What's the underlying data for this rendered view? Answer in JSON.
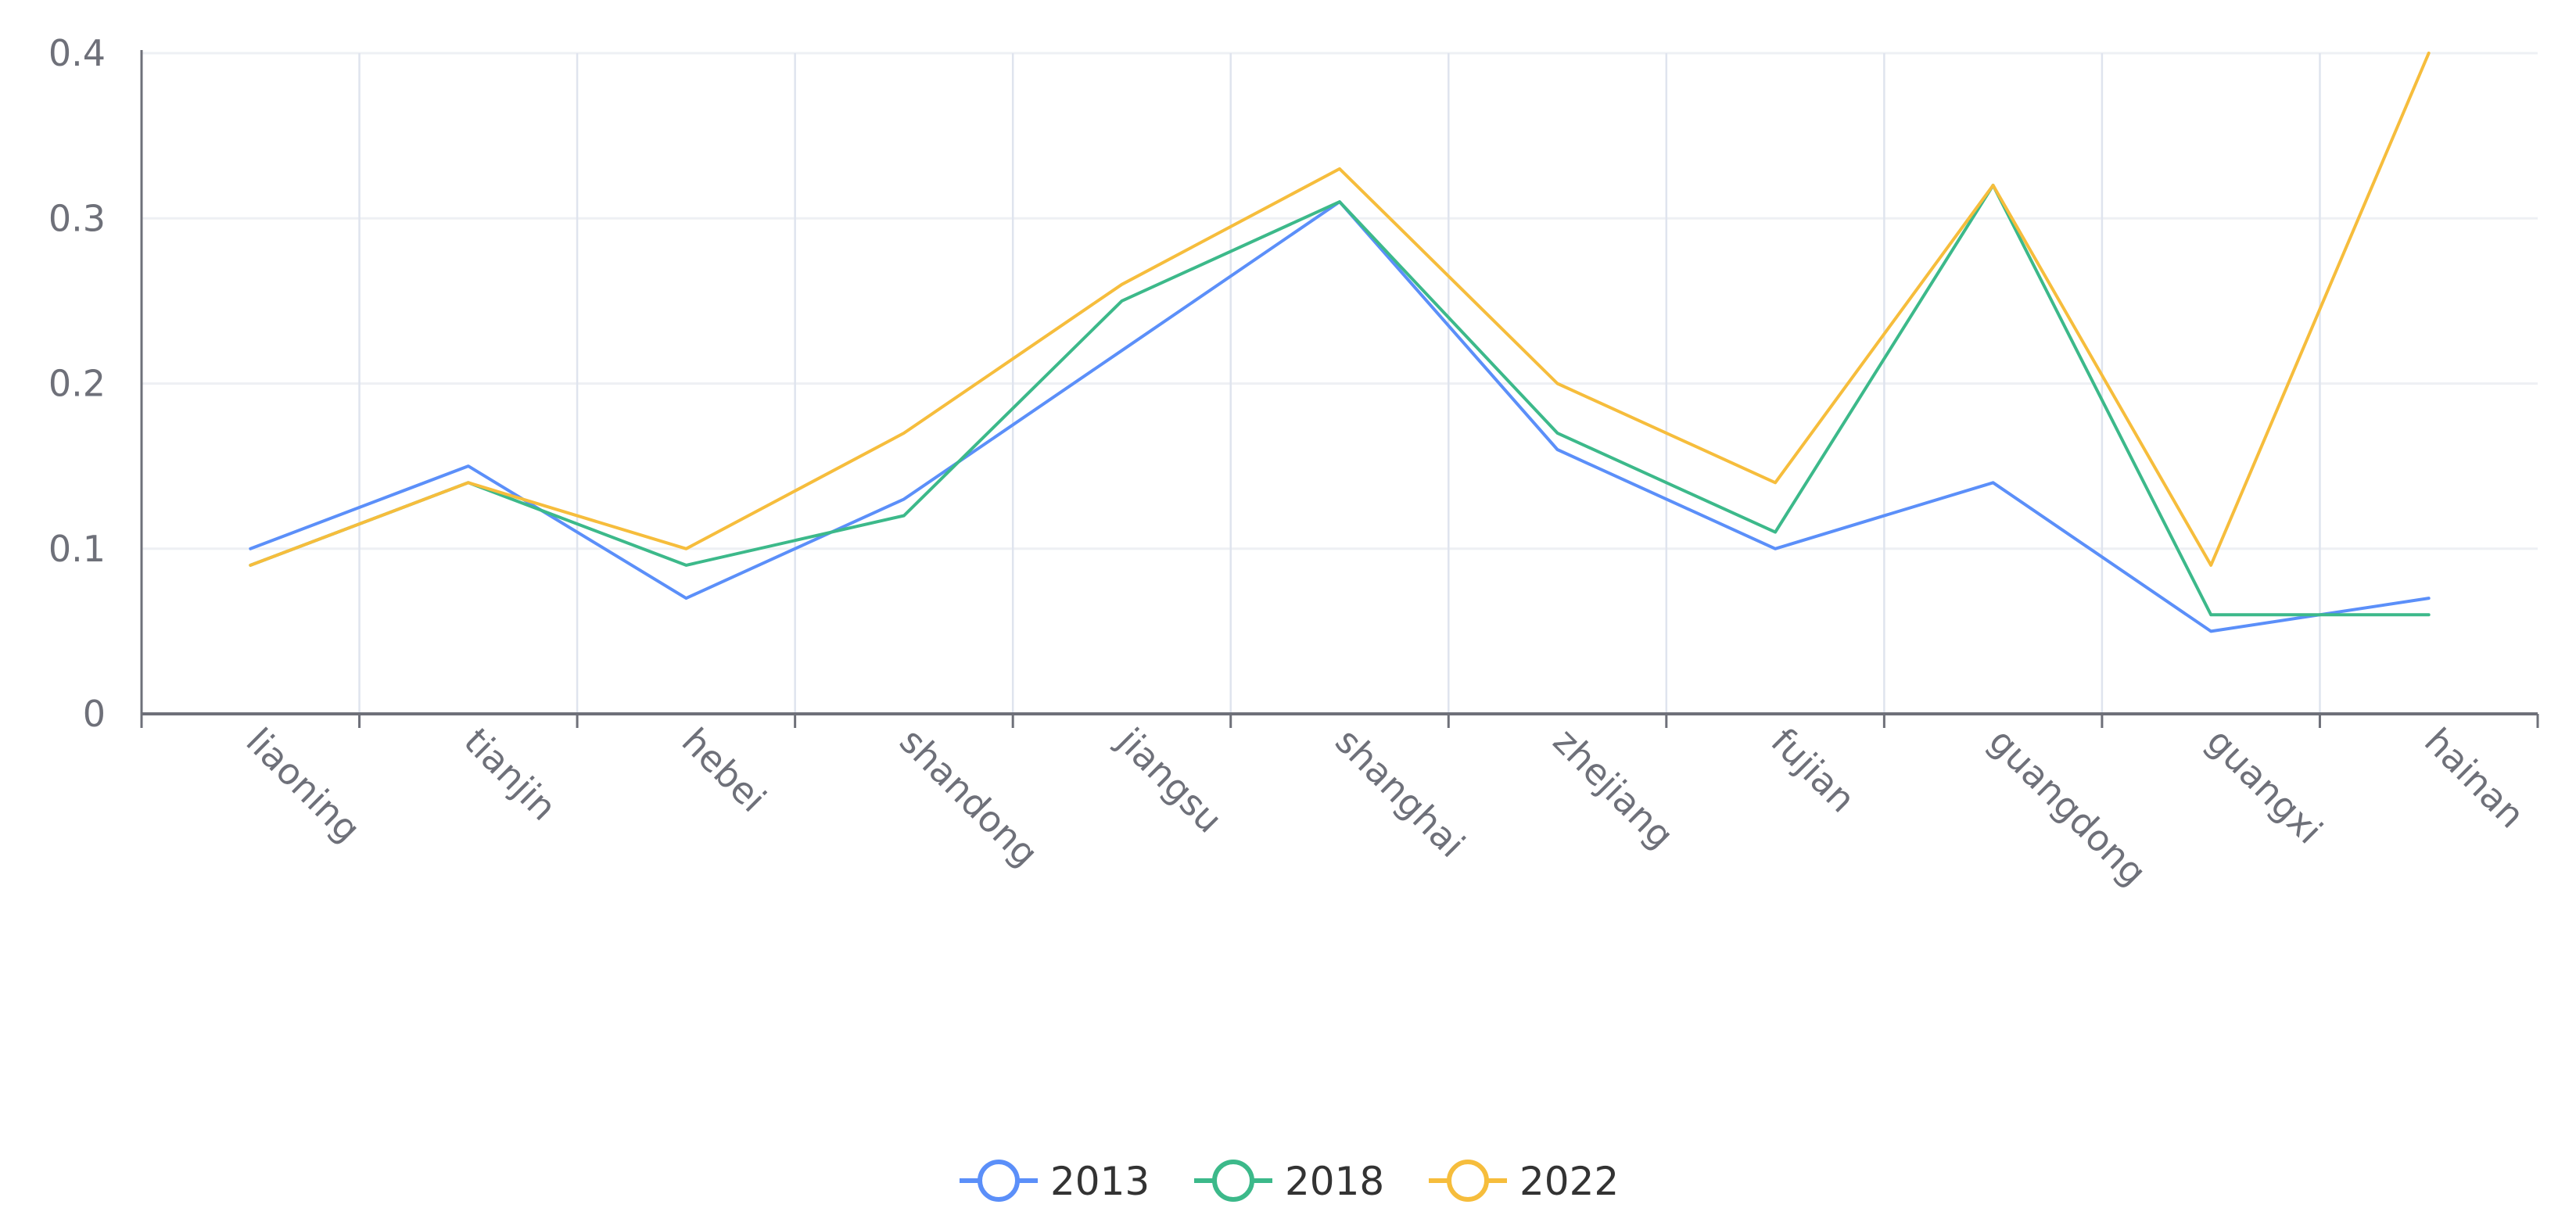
{
  "chart_data": {
    "type": "line",
    "title": "",
    "xlabel": "",
    "ylabel": "",
    "categories": [
      "liaoning",
      "tianjin",
      "hebei",
      "shandong",
      "jiangsu",
      "shanghai",
      "zhejiang",
      "fujian",
      "guangdong",
      "guangxi",
      "hainan"
    ],
    "ylim": [
      0,
      0.4
    ],
    "yticks": [
      "0",
      "0.1",
      "0.2",
      "0.3",
      "0.4"
    ],
    "grid": true,
    "legend_position": "bottom-center",
    "series": [
      {
        "name": "2013",
        "color": "#5b8ff9",
        "values": [
          0.1,
          0.15,
          0.07,
          0.13,
          0.22,
          0.31,
          0.16,
          0.1,
          0.14,
          0.05,
          0.07
        ]
      },
      {
        "name": "2018",
        "color": "#3cb98a",
        "values": [
          0.09,
          0.14,
          0.09,
          0.12,
          0.25,
          0.31,
          0.17,
          0.11,
          0.32,
          0.06,
          0.06
        ]
      },
      {
        "name": "2022",
        "color": "#f6bd3c",
        "values": [
          0.09,
          0.14,
          0.1,
          0.17,
          0.26,
          0.33,
          0.2,
          0.14,
          0.32,
          0.09,
          0.4
        ]
      }
    ]
  }
}
